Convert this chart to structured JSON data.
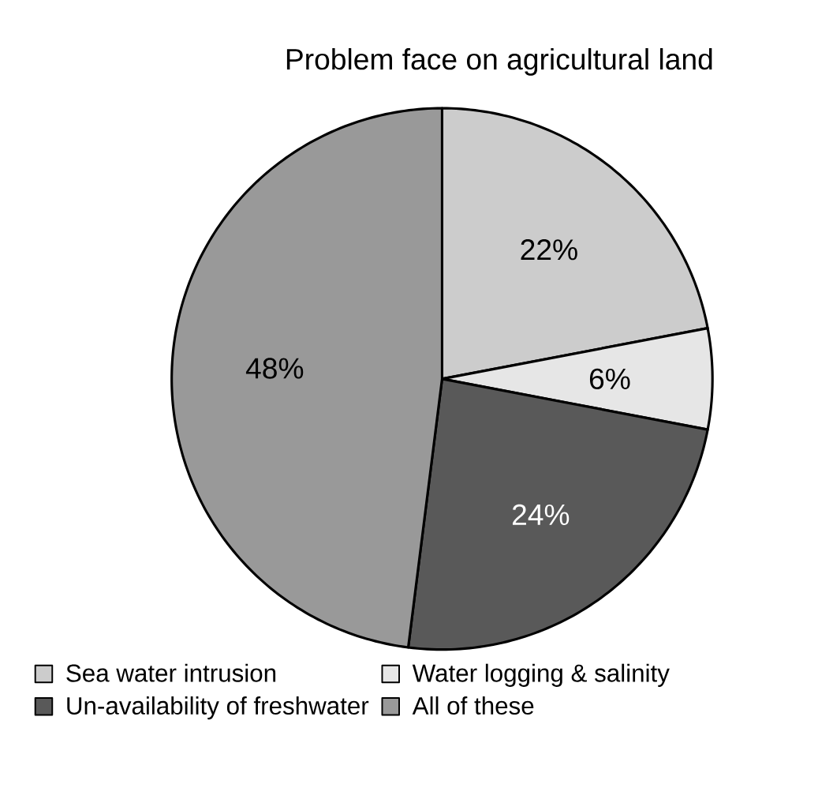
{
  "chart_data": {
    "type": "pie",
    "title": "Problem face on agricultural land",
    "categories": [
      "Sea water intrusion",
      "Water logging & salinity",
      "Un-availability of freshwater",
      "All of these"
    ],
    "values": [
      22,
      6,
      24,
      48
    ],
    "value_labels": [
      "22%",
      "6%",
      "24%",
      "48%"
    ],
    "colors": [
      "#cccccc",
      "#e6e6e6",
      "#595959",
      "#999999"
    ],
    "legend": "bottom"
  }
}
